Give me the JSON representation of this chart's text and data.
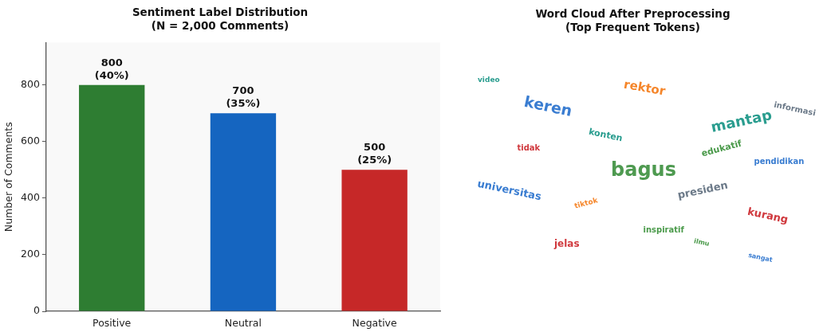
{
  "chart_data": [
    {
      "type": "bar",
      "title": "Sentiment Label Distribution",
      "subtitle": "(N = 2,000 Comments)",
      "ylabel": "Number of Comments",
      "categories": [
        "Positive",
        "Neutral",
        "Negative"
      ],
      "values": [
        800,
        700,
        500
      ],
      "colors": [
        "#2e7d32",
        "#1565c0",
        "#c62828"
      ],
      "value_labels": [
        "800\n(40%)",
        "700\n(35%)",
        "500\n(25%)"
      ],
      "ylim": [
        0,
        950
      ],
      "yticks": [
        0,
        200,
        400,
        600,
        800
      ],
      "grid": false,
      "legend": false
    },
    {
      "type": "other",
      "title": "Word Cloud After Preprocessing",
      "subtitle": "(Top Frequent Tokens)",
      "categories": [
        "video",
        "rektor",
        "keren",
        "informasi",
        "mantap",
        "konten",
        "tidak",
        "edukatif",
        "bagus",
        "pendidikan",
        "universitas",
        "presiden",
        "tiktok",
        "kurang",
        "inspiratif",
        "jelas",
        "ilmu",
        "sangat"
      ],
      "colors": [
        "#2a9d8f",
        "#f5862b",
        "#3a7dd1",
        "#6c7a89",
        "#2a9d8f",
        "#2a9d8f",
        "#d0393e",
        "#4a9a4a",
        "#4e9a50",
        "#3a7dd1",
        "#3a7dd1",
        "#6c7a89",
        "#f5862b",
        "#d0393e",
        "#4a9a4a",
        "#d0393e",
        "#4a9a4a",
        "#3a7dd1"
      ]
    }
  ]
}
